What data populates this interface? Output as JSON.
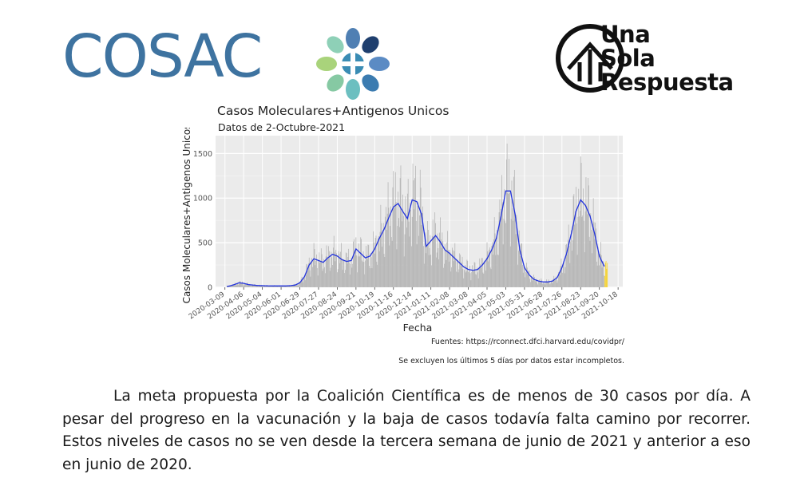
{
  "header": {
    "left_logo_text": "COSAC",
    "right_logo_lines": [
      "Una",
      "Sola",
      "Respuesta"
    ]
  },
  "chart_data": {
    "type": "bar",
    "title": "Casos Moleculares+Antigenos Unicos",
    "subtitle": "Datos de 2-Octubre-2021",
    "xlabel": "Fecha",
    "ylabel": "Casos Moleculares+Antigenos Unicos",
    "ylim": [
      0,
      1700
    ],
    "yticks": [
      0,
      500,
      1000,
      1500
    ],
    "x_tick_labels": [
      "2020-03-09",
      "2020-04-06",
      "2020-05-04",
      "2020-06-01",
      "2020-06-29",
      "2020-07-27",
      "2020-08-24",
      "2020-09-21",
      "2020-10-19",
      "2020-11-16",
      "2020-12-14",
      "2021-01-11",
      "2021-02-08",
      "2021-03-08",
      "2021-04-05",
      "2021-05-03",
      "2021-05-31",
      "2021-06-28",
      "2021-07-26",
      "2021-08-23",
      "2021-09-20",
      "2021-10-18"
    ],
    "grid": true,
    "bar_color": "#b3b3b3",
    "smooth_line_color": "#2233dd",
    "incomplete_color": "#f5d22e",
    "weekly_series": {
      "name": "smoothed daily cases (weekly samples)",
      "x": [
        "2020-03-09",
        "2020-03-16",
        "2020-03-23",
        "2020-03-30",
        "2020-04-06",
        "2020-04-13",
        "2020-04-20",
        "2020-04-27",
        "2020-05-04",
        "2020-05-11",
        "2020-05-18",
        "2020-05-25",
        "2020-06-01",
        "2020-06-08",
        "2020-06-15",
        "2020-06-22",
        "2020-06-29",
        "2020-07-06",
        "2020-07-13",
        "2020-07-20",
        "2020-07-27",
        "2020-08-03",
        "2020-08-10",
        "2020-08-17",
        "2020-08-24",
        "2020-08-31",
        "2020-09-07",
        "2020-09-14",
        "2020-09-21",
        "2020-09-28",
        "2020-10-05",
        "2020-10-12",
        "2020-10-19",
        "2020-10-26",
        "2020-11-02",
        "2020-11-09",
        "2020-11-16",
        "2020-11-23",
        "2020-11-30",
        "2020-12-07",
        "2020-12-14",
        "2020-12-21",
        "2020-12-28",
        "2021-01-04",
        "2021-01-11",
        "2021-01-18",
        "2021-01-25",
        "2021-02-01",
        "2021-02-08",
        "2021-02-15",
        "2021-02-22",
        "2021-03-01",
        "2021-03-08",
        "2021-03-15",
        "2021-03-22",
        "2021-03-29",
        "2021-04-05",
        "2021-04-12",
        "2021-04-19",
        "2021-04-26",
        "2021-05-03",
        "2021-05-10",
        "2021-05-17",
        "2021-05-24",
        "2021-05-31",
        "2021-06-07",
        "2021-06-14",
        "2021-06-21",
        "2021-06-28",
        "2021-07-05",
        "2021-07-12",
        "2021-07-19",
        "2021-07-26",
        "2021-08-02",
        "2021-08-09",
        "2021-08-16",
        "2021-08-23",
        "2021-08-30",
        "2021-09-06",
        "2021-09-13",
        "2021-09-20",
        "2021-09-27"
      ],
      "values": [
        5,
        15,
        30,
        50,
        45,
        30,
        25,
        20,
        18,
        16,
        15,
        15,
        15,
        15,
        18,
        25,
        50,
        120,
        250,
        320,
        300,
        280,
        330,
        370,
        350,
        310,
        290,
        300,
        430,
        380,
        330,
        350,
        430,
        550,
        650,
        780,
        900,
        940,
        850,
        770,
        980,
        960,
        820,
        460,
        520,
        580,
        510,
        420,
        380,
        330,
        280,
        230,
        200,
        190,
        200,
        250,
        320,
        420,
        550,
        800,
        1080,
        1080,
        820,
        420,
        220,
        140,
        90,
        70,
        60,
        60,
        70,
        110,
        220,
        380,
        600,
        850,
        980,
        920,
        800,
        600,
        350,
        240
      ]
    },
    "incomplete_period": [
      "2021-09-28",
      "2021-10-02"
    ]
  },
  "notes": {
    "source": "Fuentes: https://rconnect.dfci.harvard.edu/covidpr/",
    "excluded": "Se excluyen los últimos 5 días por datos estar incompletos."
  },
  "body": {
    "paragraph": "La meta propuesta por la Coalición Científica es de menos de 30 casos por día. A pesar del progreso en la vacunación y la baja de casos todavía falta camino por recorrer. Estos niveles de casos no se ven desde la tercera semana de junio de 2021 y anterior a eso en junio de 2020."
  }
}
